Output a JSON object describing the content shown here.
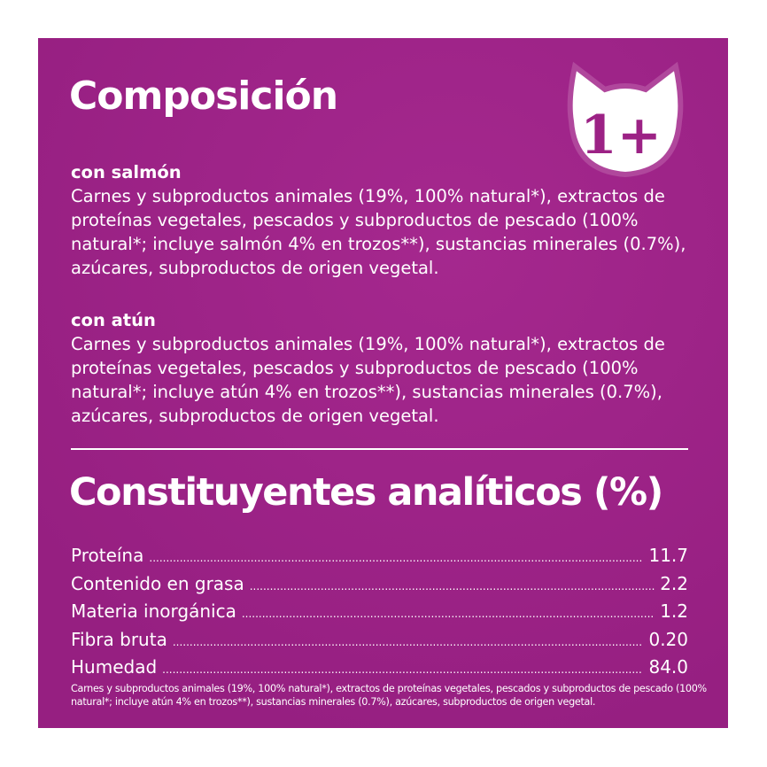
{
  "composicion": {
    "title": "Composición",
    "sections": [
      {
        "heading": "con salmón",
        "text": "Carnes y subproductos animales (19%, 100% natural*), extractos de proteínas vegetales, pescados y subproductos de pescado (100% natural*; incluye salmón 4% en trozos**), sustancias minerales (0.7%), azúcares, subproductos de origen vegetal."
      },
      {
        "heading": "con atún",
        "text": "Carnes y subproductos animales (19%, 100% natural*), extractos de proteínas vegetales, pescados y subproductos de pescado (100% natural*; incluye atún 4% en trozos**), sustancias minerales (0.7%), azúcares, subproductos de origen vegetal."
      }
    ]
  },
  "badge": {
    "label": "1+",
    "icon": "cat-head-icon"
  },
  "analiticos": {
    "title": "Constituyentes analíticos (%)",
    "rows": [
      {
        "label": "Proteína",
        "value": "11.7"
      },
      {
        "label": "Contenido en grasa",
        "value": "2.2"
      },
      {
        "label": "Materia inorgánica",
        "value": "1.2"
      },
      {
        "label": "Fibra bruta",
        "value": "0.20"
      },
      {
        "label": "Humedad",
        "value": "84.0"
      }
    ]
  },
  "footnote": "Carnes y subproductos animales (19%, 100% natural*), extractos de proteínas vegetales, pescados y subproductos de pescado (100% natural*; incluye atún 4% en trozos**), sustancias minerales (0.7%), azúcares, subproductos de origen vegetal.",
  "colors": {
    "background": "#9c2285",
    "text": "#ffffff"
  }
}
